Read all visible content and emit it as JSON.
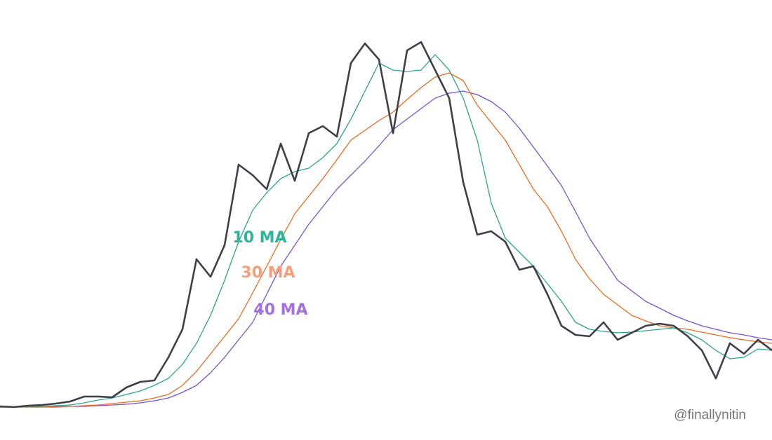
{
  "chart_data": {
    "type": "line",
    "xlim": [
      0,
      1100
    ],
    "ylim": [
      0,
      110
    ],
    "x": [
      0,
      20,
      40,
      60,
      80,
      100,
      120,
      140,
      160,
      180,
      200,
      220,
      240,
      260,
      280,
      300,
      320,
      340,
      360,
      380,
      400,
      420,
      440,
      460,
      480,
      500,
      520,
      540,
      560,
      580,
      600,
      620,
      640,
      660,
      680,
      700,
      720,
      740,
      760,
      780,
      800,
      820,
      840,
      860,
      880,
      900,
      920,
      940,
      960,
      980,
      1000,
      1020,
      1040,
      1060,
      1080,
      1100
    ],
    "series": [
      {
        "color": "#3d3f4b",
        "values": [
          0.4,
          0.2,
          0.6,
          0.8,
          1.2,
          1.8,
          3.2,
          3.2,
          3,
          5.8,
          7.4,
          7.8,
          14.4,
          22.4,
          42.4,
          37.4,
          46.4,
          69.4,
          66.4,
          62.4,
          75.4,
          64.8,
          78.4,
          80.4,
          77.4,
          98.4,
          104,
          99.4,
          78.4,
          102,
          104.4,
          96.4,
          88.4,
          64.4,
          49.4,
          50.4,
          47.4,
          39.4,
          40.4,
          32.4,
          23.4,
          20.8,
          20.4,
          24.4,
          19.4,
          21.4,
          23.4,
          24,
          23.4,
          20.4,
          16.4,
          8.4,
          18.4,
          15.4,
          19.4,
          16.4
        ]
      },
      {
        "name": "10 MA",
        "color": "#2aa58f",
        "label_color": "#2db59b",
        "values": [
          0.2,
          0.2,
          0.4,
          0.4,
          0.6,
          0.8,
          1.4,
          2.2,
          2.8,
          3.8,
          4.8,
          6.4,
          8.4,
          12.4,
          18.4,
          26.4,
          36.4,
          47.4,
          56.4,
          61.4,
          65.4,
          67.4,
          68.4,
          71.4,
          75.4,
          82.4,
          90.4,
          98.4,
          96.4,
          96,
          96.4,
          100.8,
          96.4,
          88.4,
          76.4,
          58.4,
          48.4,
          44.4,
          40.4,
          35.4,
          30.4,
          24.4,
          22.4,
          21.8,
          21.4,
          21.6,
          22,
          22.4,
          22.8,
          21.4,
          19.4,
          16.4,
          14,
          14.4,
          16.8,
          16.4
        ]
      },
      {
        "name": "30 MA",
        "color": "#f06a1c",
        "label_color": "#f5a07a",
        "values": [
          0.2,
          0.2,
          0.2,
          0.2,
          0.4,
          0.4,
          0.6,
          0.8,
          1.2,
          1.6,
          2,
          2.8,
          3.8,
          6.4,
          10.4,
          15.4,
          20.4,
          25.4,
          32.8,
          40.4,
          48,
          55.4,
          60.4,
          65.4,
          70.8,
          76.4,
          79.2,
          82,
          84.4,
          88,
          91.4,
          94.4,
          95.6,
          93.4,
          86.4,
          81.4,
          76.4,
          69.4,
          62.4,
          57.4,
          50.4,
          42.4,
          36.8,
          32.4,
          29.4,
          26.4,
          24.8,
          23.4,
          22.8,
          22.4,
          21.6,
          20.8,
          20,
          19.4,
          18.8,
          18.4
        ]
      },
      {
        "name": "40 MA",
        "color": "#7b4fd6",
        "label_color": "#a66ee0",
        "values": [
          0.2,
          0.2,
          0.2,
          0.2,
          0.2,
          0.4,
          0.4,
          0.6,
          0.8,
          1,
          1.4,
          2,
          2.8,
          4.4,
          6.4,
          10,
          14.4,
          19.4,
          24.4,
          32.4,
          40.4,
          46.4,
          52.4,
          57.4,
          62.4,
          66.4,
          70.4,
          74.8,
          79.4,
          82.4,
          85.4,
          88.4,
          89.8,
          90.4,
          89.4,
          87.4,
          84.4,
          79.8,
          74.4,
          69,
          63.4,
          56,
          48.4,
          42.4,
          36.4,
          33.4,
          30.4,
          28.4,
          26.4,
          24.8,
          23.4,
          22.4,
          21.4,
          20.8,
          20,
          19.4
        ]
      }
    ],
    "credit": "@finallynitin"
  }
}
